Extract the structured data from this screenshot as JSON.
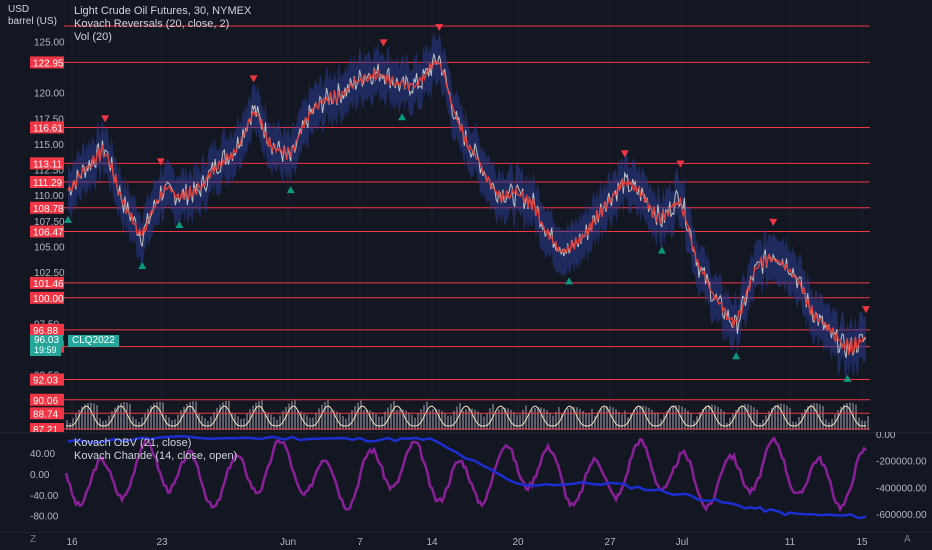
{
  "header": {
    "currency": "USD",
    "unit": "barrel (US)",
    "symbol_line": "Light Crude Oil Futures, 30, NYMEX",
    "indicator_1": "Kovach Reversals (20, close, 2)",
    "indicator_2": "Vol (20)",
    "lower_indicator_1": "Kovach OBV (21, close)",
    "lower_indicator_2": "Kovach Chande (14, close, open)"
  },
  "price_axis": {
    "ticks": [
      "125.00",
      "120.00",
      "117.50",
      "115.00",
      "112.50",
      "110.00",
      "107.50",
      "105.00",
      "102.50",
      "100.00",
      "97.50",
      "92.50",
      "90.00",
      "87.50"
    ],
    "levels": [
      {
        "label": "122.95",
        "value": 122.95
      },
      {
        "label": "116.61",
        "value": 116.61
      },
      {
        "label": "113.11",
        "value": 113.11
      },
      {
        "label": "111.29",
        "value": 111.29
      },
      {
        "label": "108.78",
        "value": 108.78
      },
      {
        "label": "106.47",
        "value": 106.47
      },
      {
        "label": "101.46",
        "value": 101.46
      },
      {
        "label": "100.00",
        "value": 100.0
      },
      {
        "label": "96.88",
        "value": 96.88
      },
      {
        "label": "95.24",
        "value": 95.24
      },
      {
        "label": "92.03",
        "value": 92.03
      },
      {
        "label": "90.06",
        "value": 90.06
      },
      {
        "label": "88.74",
        "value": 88.74
      },
      {
        "label": "87.21",
        "value": 87.21
      }
    ],
    "top_line_value": 126.5,
    "last_price": "96.03",
    "last_price_sub": "19:59",
    "contract": "CLQ2022",
    "colors": {
      "level": "#f23645",
      "last": "#26a69a",
      "contract": "#26a69a"
    }
  },
  "lower_axis": {
    "left_ticks": [
      "40.00",
      "0.00",
      "-40.00",
      "-80.00"
    ],
    "right_ticks": [
      "0.00",
      "-200000.00",
      "-400000.00",
      "-600000.00"
    ]
  },
  "time_axis": {
    "labels": [
      "16",
      "23",
      "Jun",
      "7",
      "14",
      "20",
      "27",
      "Jul",
      "11",
      "15"
    ],
    "left_button": "Z",
    "right_button": "A"
  },
  "chart_data": {
    "type": "line",
    "price_series": {
      "name": "Light Crude Oil Futures",
      "x": [
        "May 16",
        "May 17",
        "May 18",
        "May 19",
        "May 20",
        "May 23",
        "May 24",
        "May 25",
        "May 26",
        "May 27",
        "May 31",
        "Jun 1",
        "Jun 2",
        "Jun 3",
        "Jun 6",
        "Jun 7",
        "Jun 8",
        "Jun 9",
        "Jun 10",
        "Jun 13",
        "Jun 14",
        "Jun 15",
        "Jun 16",
        "Jun 17",
        "Jun 20",
        "Jun 21",
        "Jun 22",
        "Jun 23",
        "Jun 24",
        "Jun 27",
        "Jun 28",
        "Jun 29",
        "Jun 30",
        "Jul 1",
        "Jul 4",
        "Jul 5",
        "Jul 6",
        "Jul 7",
        "Jul 8",
        "Jul 11",
        "Jul 12",
        "Jul 13",
        "Jul 14",
        "Jul 15"
      ],
      "y": [
        110.5,
        112.8,
        114.6,
        109.2,
        106.0,
        110.4,
        110.0,
        110.3,
        113.0,
        114.5,
        118.5,
        115.0,
        113.4,
        117.8,
        119.5,
        120.2,
        121.8,
        122.0,
        120.5,
        121.0,
        123.5,
        116.8,
        113.8,
        110.5,
        110.0,
        109.5,
        106.0,
        104.5,
        106.5,
        109.5,
        111.2,
        110.0,
        107.5,
        110.2,
        103.0,
        99.5,
        97.2,
        102.5,
        104.5,
        103.0,
        99.0,
        96.5,
        95.0,
        96.0
      ]
    },
    "obv_series": {
      "x": [
        "May 16",
        "May 23",
        "Jun 1",
        "Jun 7",
        "Jun 14",
        "Jun 20",
        "Jun 27",
        "Jul 1",
        "Jul 5",
        "Jul 11",
        "Jul 15"
      ],
      "y": [
        -60000,
        -30000,
        -30000,
        -40000,
        -40000,
        -380000,
        -370000,
        -450000,
        -540000,
        -600000,
        -620000
      ]
    },
    "chande_range": [
      -90,
      70
    ],
    "ylim": [
      87.21,
      126.5
    ]
  }
}
